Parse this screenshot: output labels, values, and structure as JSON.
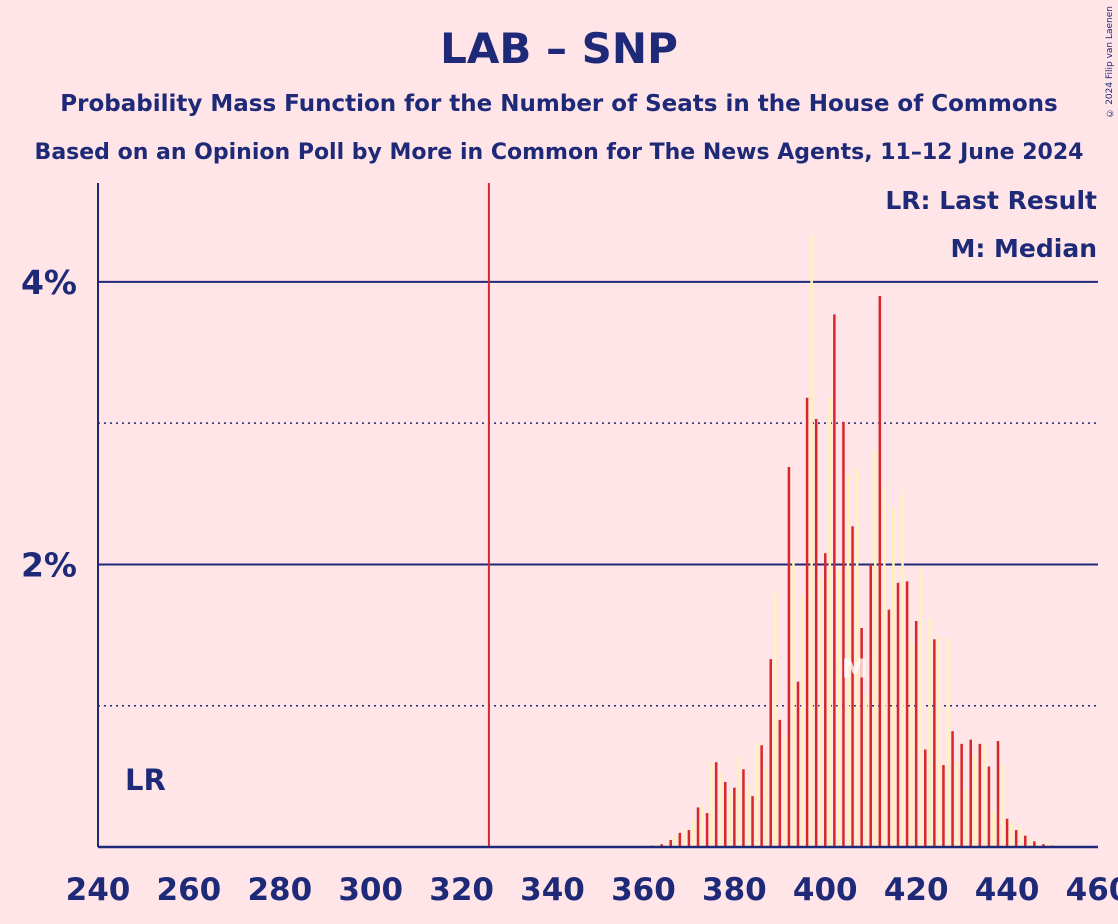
{
  "chart_data": {
    "type": "bar",
    "title": "LAB – SNP",
    "subtitle": "Probability Mass Function for the Number of Seats in the House of Commons",
    "subtitle2": "Based on an Opinion Poll by More in Common for The News Agents, 11–12 June 2024",
    "copyright": "© 2024 Filip van Laenen",
    "xlim": [
      240,
      460
    ],
    "ylim": [
      0,
      4.7
    ],
    "x_ticks": [
      "240",
      "260",
      "280",
      "300",
      "320",
      "340",
      "360",
      "380",
      "400",
      "420",
      "440",
      "460"
    ],
    "y_ticks": [
      {
        "value": 2,
        "label": "2%"
      },
      {
        "value": 4,
        "label": "4%"
      }
    ],
    "dotted_gridlines": [
      1,
      3
    ],
    "last_result_x": 326,
    "median_x": 406,
    "legend": {
      "last_result": "LR: Last Result",
      "median": "M: Median",
      "lr_marker": "LR",
      "median_marker": "M"
    },
    "colors": {
      "background": "#FFE4E8",
      "axis": "#1E2A78",
      "bar_red": "#D8262A",
      "bar_yellow": "#FFF3B8",
      "last_result_line": "#D8262A"
    },
    "x": [
      361,
      362,
      363,
      364,
      365,
      366,
      367,
      368,
      369,
      370,
      371,
      372,
      373,
      374,
      375,
      376,
      377,
      378,
      379,
      380,
      381,
      382,
      383,
      384,
      385,
      386,
      387,
      388,
      389,
      390,
      391,
      392,
      393,
      394,
      395,
      396,
      397,
      398,
      399,
      400,
      401,
      402,
      403,
      404,
      405,
      406,
      407,
      408,
      409,
      410,
      411,
      412,
      413,
      414,
      415,
      416,
      417,
      418,
      419,
      420,
      421,
      422,
      423,
      424,
      425,
      426,
      427,
      428,
      429,
      430,
      431,
      432,
      433,
      434,
      435,
      436,
      437,
      438,
      439,
      440,
      441,
      442,
      443,
      444,
      445,
      446,
      447,
      448,
      449,
      450
    ],
    "values": [
      0.01,
      0.01,
      0.02,
      0.02,
      0.03,
      0.05,
      0.08,
      0.1,
      0.13,
      0.12,
      0.2,
      0.28,
      0.3,
      0.24,
      0.6,
      0.6,
      0.52,
      0.46,
      0.38,
      0.42,
      0.64,
      0.55,
      0.44,
      0.36,
      0.74,
      0.72,
      0.56,
      1.33,
      1.8,
      0.9,
      0.78,
      2.69,
      2.02,
      1.17,
      1.78,
      3.18,
      4.33,
      3.03,
      1.9,
      2.08,
      3.18,
      3.77,
      1.95,
      3.01,
      2.64,
      2.27,
      2.68,
      1.55,
      1.08,
      2.0,
      2.81,
      3.9,
      2.55,
      1.68,
      2.4,
      1.87,
      2.53,
      1.88,
      1.45,
      1.6,
      1.97,
      0.69,
      1.62,
      1.47,
      1.49,
      0.58,
      1.48,
      0.82,
      0.6,
      0.73,
      0.41,
      0.76,
      0.65,
      0.73,
      0.74,
      0.57,
      0.25,
      0.75,
      0.58,
      0.2,
      0.17,
      0.12,
      0.14,
      0.08,
      0.06,
      0.04,
      0.03,
      0.02,
      0.04,
      0.01
    ]
  }
}
